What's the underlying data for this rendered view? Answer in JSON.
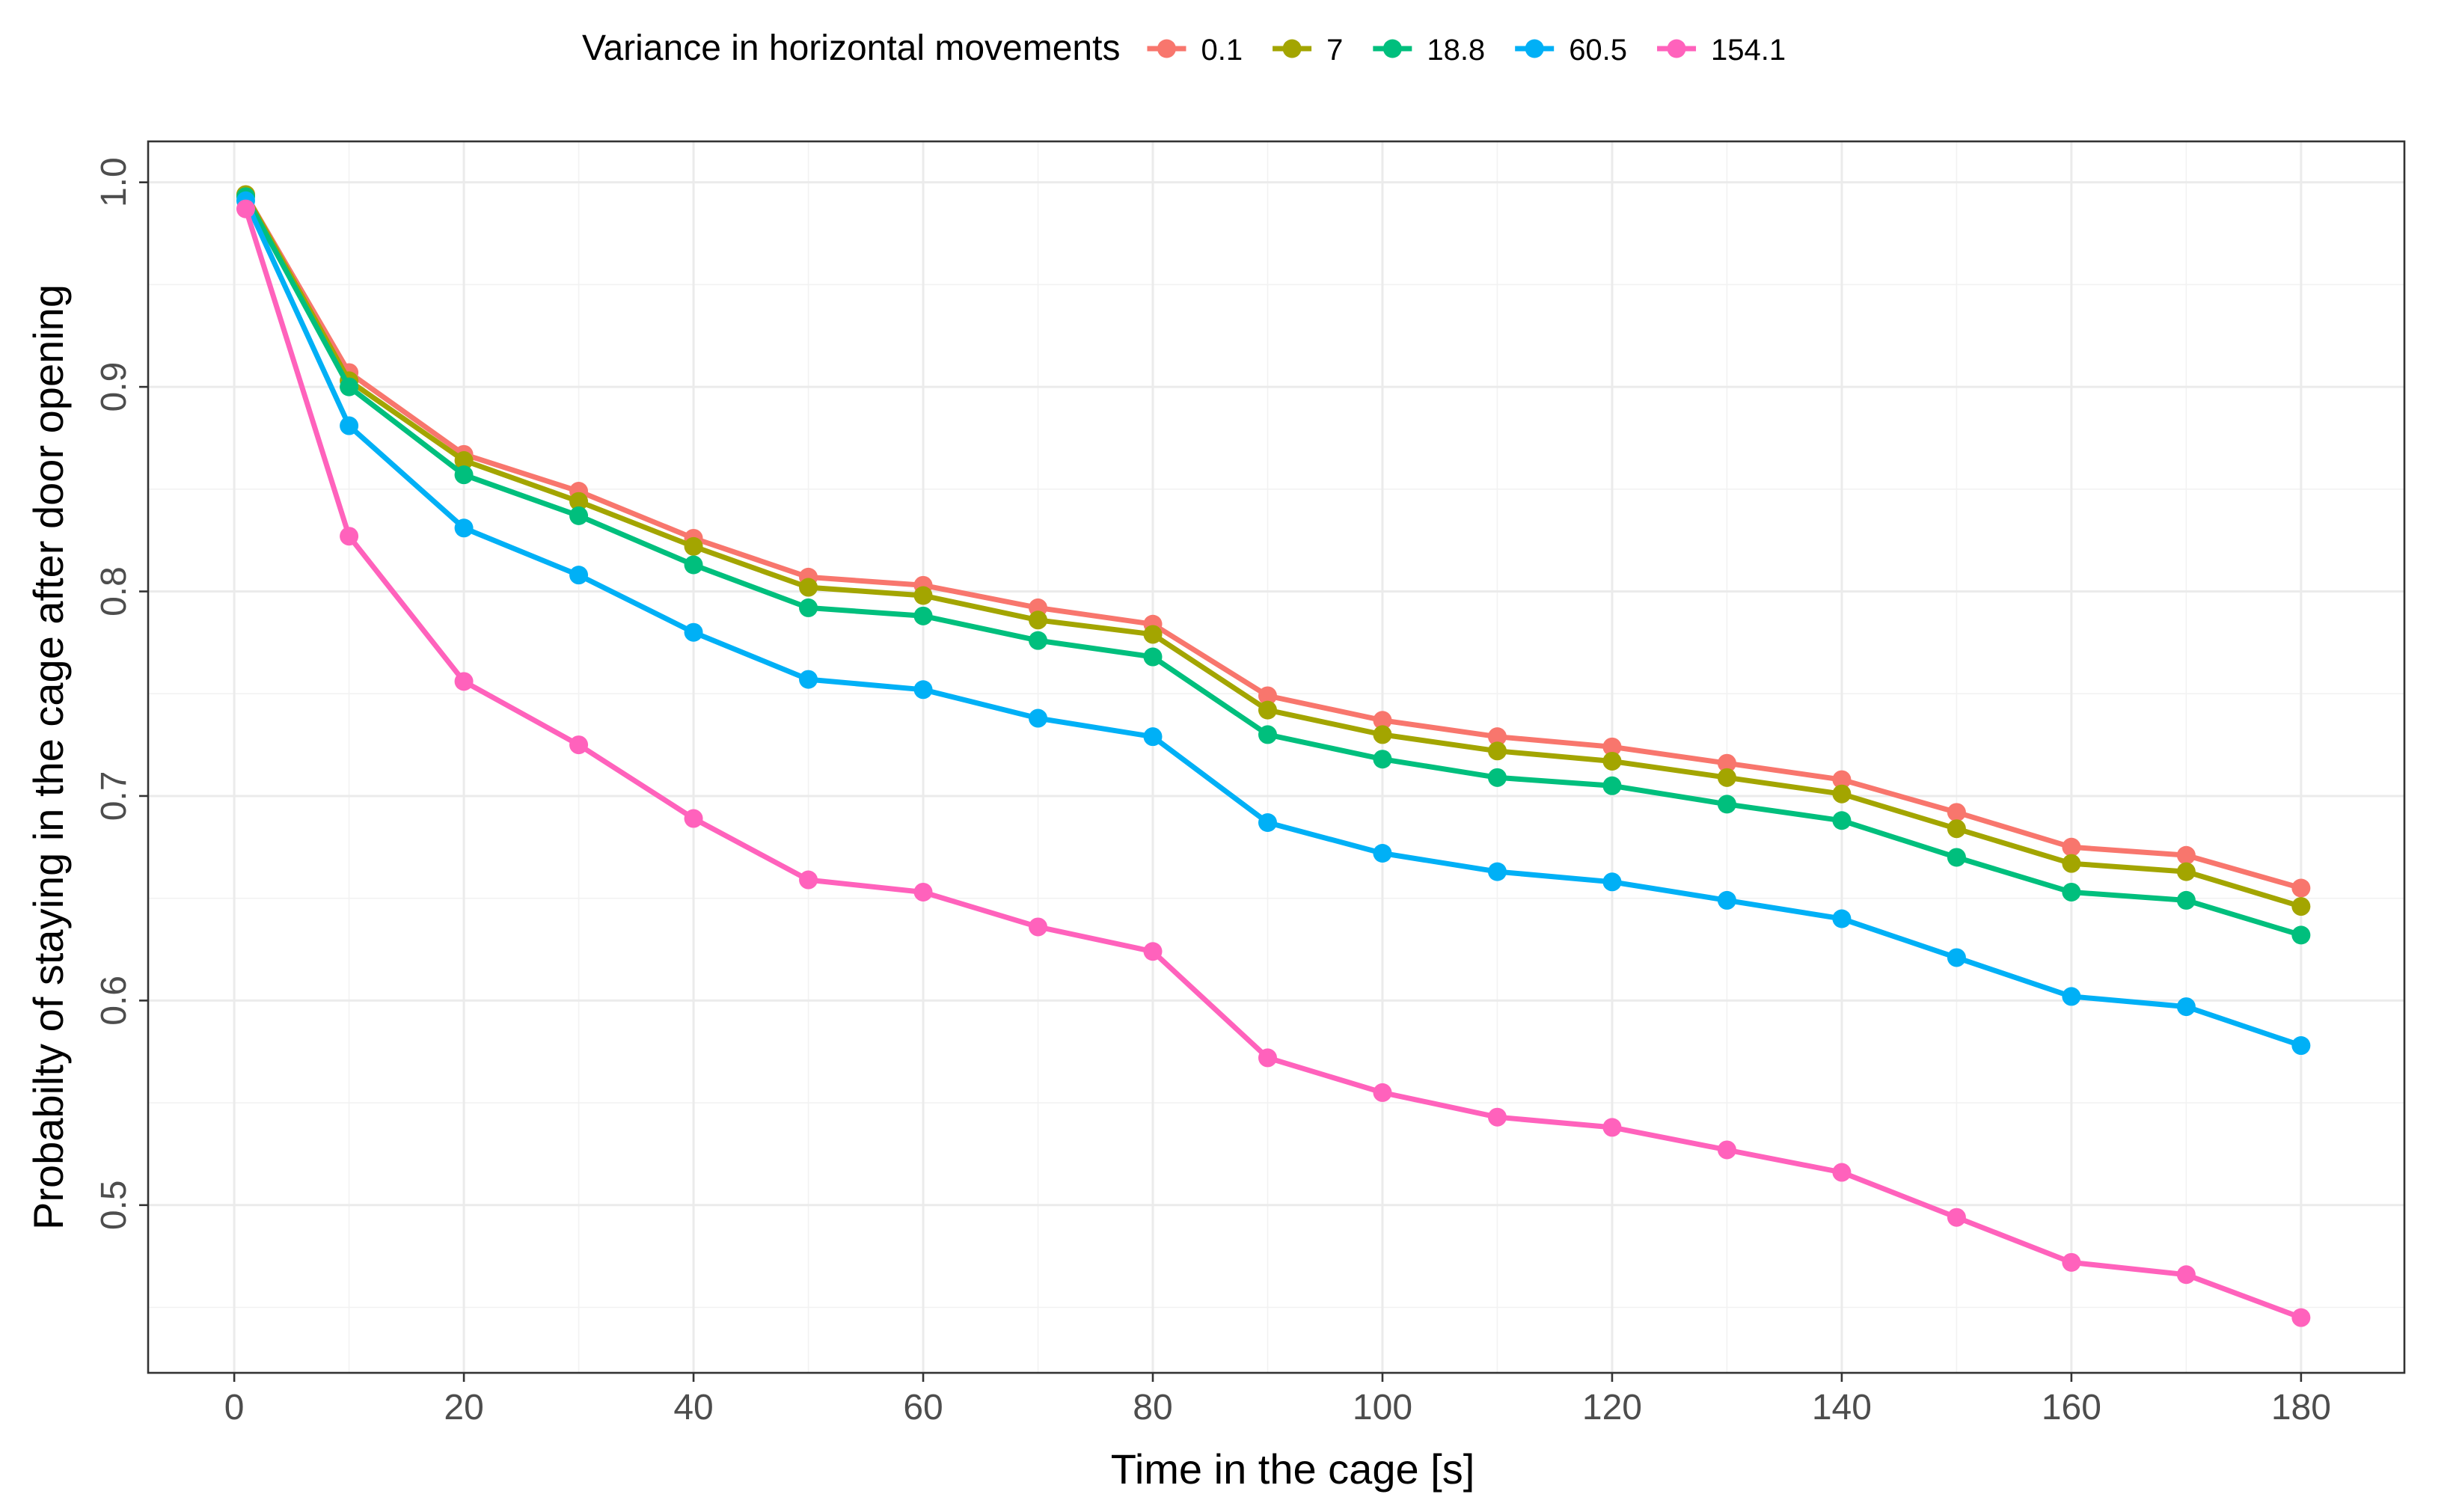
{
  "chart_data": {
    "type": "line",
    "xlabel": "Time in the cage [s]",
    "ylabel": "Probabilty of staying in the cage after door opening",
    "xlim": [
      -7.5,
      189
    ],
    "ylim": [
      0.418,
      1.02
    ],
    "x_ticks": [
      0,
      20,
      40,
      60,
      80,
      100,
      120,
      140,
      160,
      180
    ],
    "y_ticks": [
      0.5,
      0.6,
      0.7,
      0.8,
      0.9,
      1.0
    ],
    "y_tick_labels": [
      "0.5",
      "0.6",
      "0.7",
      "0.8",
      "0.9",
      "1.0"
    ],
    "grid": true,
    "legend": {
      "title": "Variance in horizontal movements",
      "position": "top"
    },
    "x": [
      1,
      10,
      20,
      30,
      40,
      50,
      60,
      70,
      80,
      90,
      100,
      110,
      120,
      130,
      140,
      150,
      160,
      170,
      180
    ],
    "series": [
      {
        "name": "0.1",
        "color": "#F8766D",
        "values": [
          0.994,
          0.907,
          0.867,
          0.849,
          0.826,
          0.807,
          0.803,
          0.792,
          0.784,
          0.749,
          0.737,
          0.729,
          0.724,
          0.716,
          0.708,
          0.692,
          0.675,
          0.671,
          0.655
        ]
      },
      {
        "name": "7",
        "color": "#A3A500",
        "values": [
          0.994,
          0.903,
          0.864,
          0.844,
          0.822,
          0.802,
          0.798,
          0.786,
          0.779,
          0.742,
          0.73,
          0.722,
          0.717,
          0.709,
          0.701,
          0.684,
          0.667,
          0.663,
          0.646
        ]
      },
      {
        "name": "18.8",
        "color": "#00BF7D",
        "values": [
          0.993,
          0.9,
          0.857,
          0.837,
          0.813,
          0.792,
          0.788,
          0.776,
          0.768,
          0.73,
          0.718,
          0.709,
          0.705,
          0.696,
          0.688,
          0.67,
          0.653,
          0.649,
          0.632
        ]
      },
      {
        "name": "60.5",
        "color": "#00B0F6",
        "values": [
          0.991,
          0.881,
          0.831,
          0.808,
          0.78,
          0.757,
          0.752,
          0.738,
          0.729,
          0.687,
          0.672,
          0.663,
          0.658,
          0.649,
          0.64,
          0.621,
          0.602,
          0.597,
          0.578
        ]
      },
      {
        "name": "154.1",
        "color": "#FF62BC",
        "values": [
          0.987,
          0.827,
          0.756,
          0.725,
          0.689,
          0.659,
          0.653,
          0.636,
          0.624,
          0.572,
          0.555,
          0.543,
          0.538,
          0.527,
          0.516,
          0.494,
          0.472,
          0.466,
          0.445
        ]
      }
    ]
  }
}
